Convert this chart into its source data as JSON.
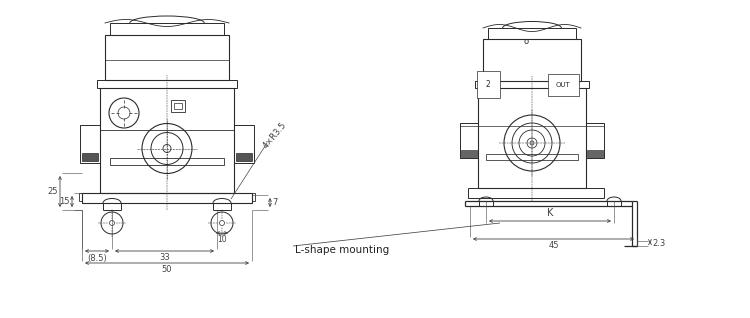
{
  "bg_color": "#ffffff",
  "line_color": "#2a2a2a",
  "dim_color": "#444444",
  "fig_width": 7.5,
  "fig_height": 3.18,
  "label_lshape": "L-shape mounting",
  "dim_25": "25",
  "dim_15": "15",
  "dim_8p5": "(8.5)",
  "dim_33": "33",
  "dim_50": "50",
  "dim_7": "7",
  "dim_10": "10",
  "dim_4xR35": "4×R3.5",
  "dim_K": "K",
  "dim_45": "45",
  "dim_2p3": "2.3",
  "label_2": "2",
  "label_OUT": "OUT",
  "label_o": "o"
}
